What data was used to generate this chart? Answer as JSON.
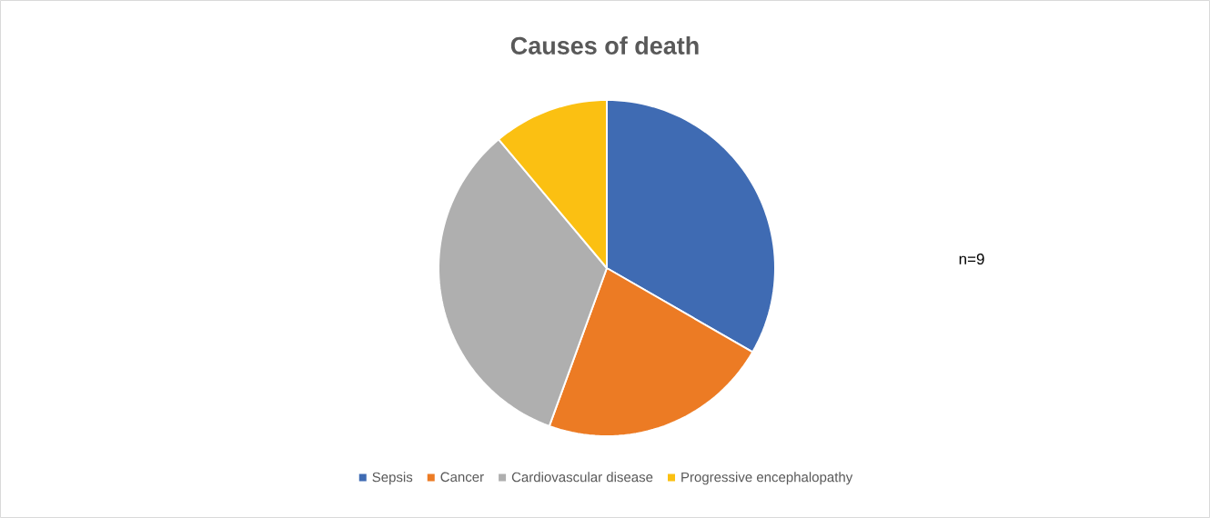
{
  "chart_data": {
    "type": "pie",
    "title": "Causes of death",
    "categories": [
      "Sepsis",
      "Cancer",
      "Cardiovascular disease",
      "Progressive encephalopathy"
    ],
    "values": [
      33.33,
      22.22,
      33.34,
      11.11
    ],
    "colors": [
      "#3f6bb3",
      "#ec7b24",
      "#afafaf",
      "#fbc012"
    ],
    "legend": "bottom",
    "annotations": [
      "n=9"
    ]
  }
}
